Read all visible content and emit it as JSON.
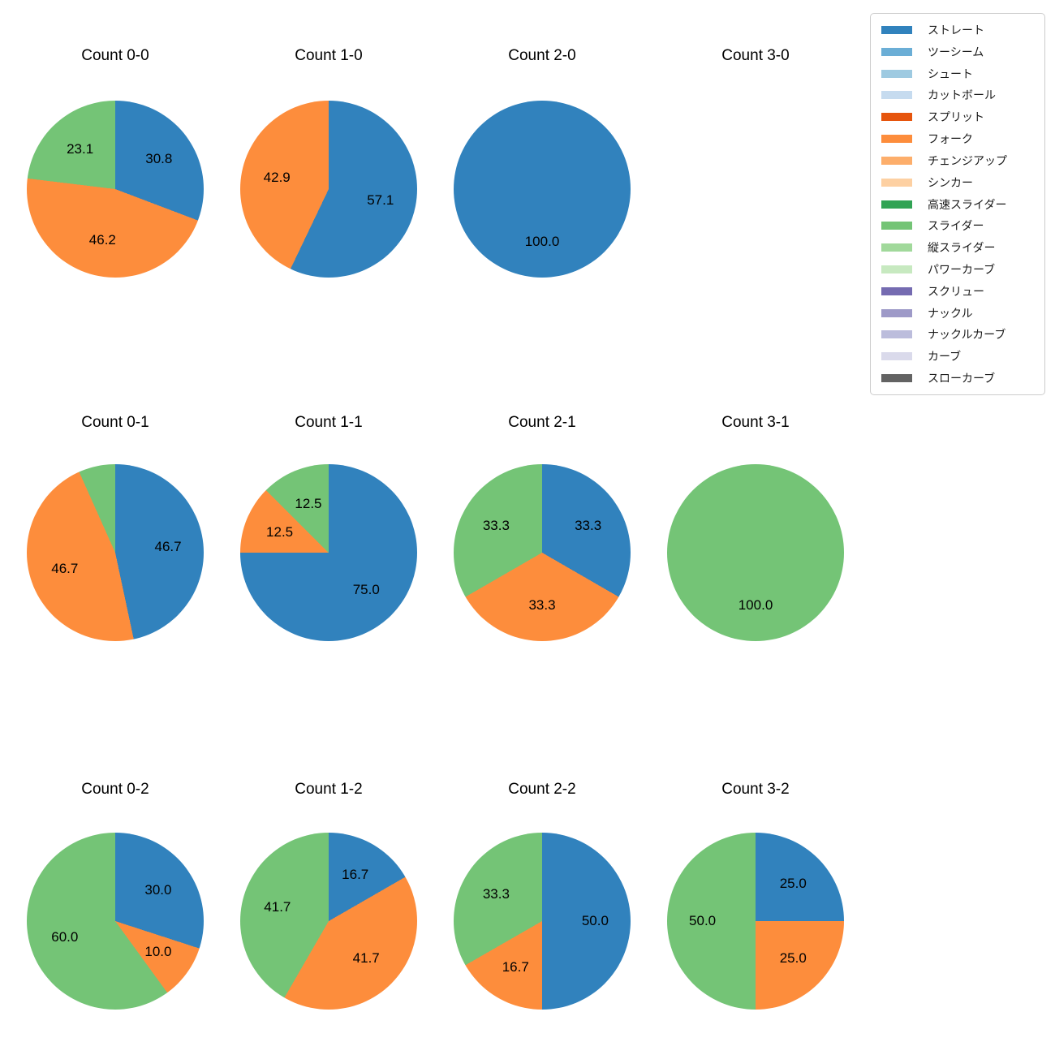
{
  "figure": {
    "background_color": "#ffffff"
  },
  "legend": {
    "position": "upper right",
    "border_color": "#cccccc",
    "items": [
      {
        "label": "ストレート",
        "color": "#3182bd"
      },
      {
        "label": "ツーシーム",
        "color": "#6baed6"
      },
      {
        "label": "シュート",
        "color": "#9ecae1"
      },
      {
        "label": "カットボール",
        "color": "#c6dbef"
      },
      {
        "label": "スプリット",
        "color": "#e6550d"
      },
      {
        "label": "フォーク",
        "color": "#fd8d3c"
      },
      {
        "label": "チェンジアップ",
        "color": "#fdae6b"
      },
      {
        "label": "シンカー",
        "color": "#fdd0a2"
      },
      {
        "label": "高速スライダー",
        "color": "#31a354"
      },
      {
        "label": "スライダー",
        "color": "#74c476"
      },
      {
        "label": "縦スライダー",
        "color": "#a1d99b"
      },
      {
        "label": "パワーカーブ",
        "color": "#c7e9c0"
      },
      {
        "label": "スクリュー",
        "color": "#756bb1"
      },
      {
        "label": "ナックル",
        "color": "#9e9ac8"
      },
      {
        "label": "ナックルカーブ",
        "color": "#bcbddc"
      },
      {
        "label": "カーブ",
        "color": "#dadaeb"
      },
      {
        "label": "スローカーブ",
        "color": "#636363"
      }
    ]
  },
  "chart_data": {
    "type": "pie",
    "layout": "grid of 12 pies, 4 columns x 3 rows, start angle top, clockwise",
    "grid_rows": 3,
    "grid_cols": 4,
    "pct_distance": 0.6,
    "pies": [
      {
        "title": "Count 0-0",
        "slices": [
          {
            "name": "ストレート",
            "color": "#3182bd",
            "value": 30.8,
            "label": "30.8"
          },
          {
            "name": "フォーク",
            "color": "#fd8d3c",
            "value": 46.2,
            "label": "46.2"
          },
          {
            "name": "スライダー",
            "color": "#74c476",
            "value": 23.1,
            "label": "23.1"
          }
        ]
      },
      {
        "title": "Count 1-0",
        "slices": [
          {
            "name": "ストレート",
            "color": "#3182bd",
            "value": 57.1,
            "label": "57.1"
          },
          {
            "name": "フォーク",
            "color": "#fd8d3c",
            "value": 42.9,
            "label": "42.9"
          }
        ]
      },
      {
        "title": "Count 2-0",
        "slices": [
          {
            "name": "ストレート",
            "color": "#3182bd",
            "value": 100.0,
            "label": "100.0"
          }
        ]
      },
      {
        "title": "Count 3-0",
        "slices": []
      },
      {
        "title": "Count 0-1",
        "slices": [
          {
            "name": "ストレート",
            "color": "#3182bd",
            "value": 46.7,
            "label": "46.7"
          },
          {
            "name": "フォーク",
            "color": "#fd8d3c",
            "value": 46.7,
            "label": "46.7"
          },
          {
            "name": "スライダー",
            "color": "#74c476",
            "value": 6.7,
            "label": ""
          }
        ]
      },
      {
        "title": "Count 1-1",
        "slices": [
          {
            "name": "ストレート",
            "color": "#3182bd",
            "value": 75.0,
            "label": "75.0"
          },
          {
            "name": "フォーク",
            "color": "#fd8d3c",
            "value": 12.5,
            "label": "12.5"
          },
          {
            "name": "スライダー",
            "color": "#74c476",
            "value": 12.5,
            "label": "12.5"
          }
        ]
      },
      {
        "title": "Count 2-1",
        "slices": [
          {
            "name": "ストレート",
            "color": "#3182bd",
            "value": 33.3,
            "label": "33.3"
          },
          {
            "name": "フォーク",
            "color": "#fd8d3c",
            "value": 33.3,
            "label": "33.3"
          },
          {
            "name": "スライダー",
            "color": "#74c476",
            "value": 33.3,
            "label": "33.3"
          }
        ]
      },
      {
        "title": "Count 3-1",
        "slices": [
          {
            "name": "スライダー",
            "color": "#74c476",
            "value": 100.0,
            "label": "100.0"
          }
        ]
      },
      {
        "title": "Count 0-2",
        "slices": [
          {
            "name": "ストレート",
            "color": "#3182bd",
            "value": 30.0,
            "label": "30.0"
          },
          {
            "name": "フォーク",
            "color": "#fd8d3c",
            "value": 10.0,
            "label": "10.0"
          },
          {
            "name": "スライダー",
            "color": "#74c476",
            "value": 60.0,
            "label": "60.0"
          }
        ]
      },
      {
        "title": "Count 1-2",
        "slices": [
          {
            "name": "ストレート",
            "color": "#3182bd",
            "value": 16.7,
            "label": "16.7"
          },
          {
            "name": "フォーク",
            "color": "#fd8d3c",
            "value": 41.7,
            "label": "41.7"
          },
          {
            "name": "スライダー",
            "color": "#74c476",
            "value": 41.7,
            "label": "41.7"
          }
        ]
      },
      {
        "title": "Count 2-2",
        "slices": [
          {
            "name": "ストレート",
            "color": "#3182bd",
            "value": 50.0,
            "label": "50.0"
          },
          {
            "name": "フォーク",
            "color": "#fd8d3c",
            "value": 16.7,
            "label": "16.7"
          },
          {
            "name": "スライダー",
            "color": "#74c476",
            "value": 33.3,
            "label": "33.3"
          }
        ]
      },
      {
        "title": "Count 3-2",
        "slices": [
          {
            "name": "ストレート",
            "color": "#3182bd",
            "value": 25.0,
            "label": "25.0"
          },
          {
            "name": "フォーク",
            "color": "#fd8d3c",
            "value": 25.0,
            "label": "25.0"
          },
          {
            "name": "スライダー",
            "color": "#74c476",
            "value": 50.0,
            "label": "50.0"
          }
        ]
      }
    ]
  }
}
